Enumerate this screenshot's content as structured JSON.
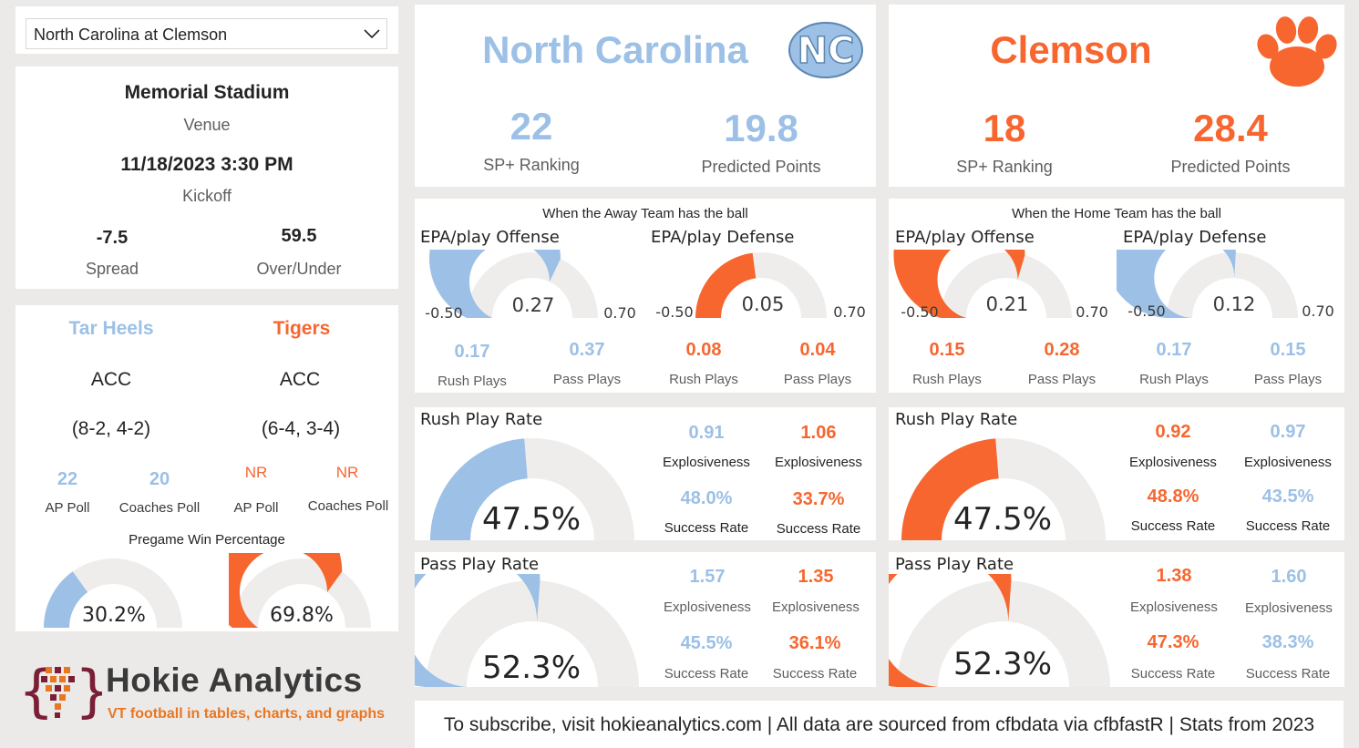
{
  "colors": {
    "away": "#9cc0e6",
    "home": "#f7662f",
    "track": "#efedeb",
    "bg": "#eceae8"
  },
  "icons": {
    "away_logo": "nc-monogram-logo",
    "home_logo": "paw-print-logo",
    "brand_logo": "hokie-analytics-logo",
    "dropdown": "chevron-down-icon"
  },
  "selector": {
    "value": "North Carolina at Clemson"
  },
  "game": {
    "venue": "Memorial Stadium",
    "venue_label": "Venue",
    "kickoff": "11/18/2023 3:30 PM",
    "kickoff_label": "Kickoff",
    "spread": "-7.5",
    "spread_label": "Spread",
    "over_under": "59.5",
    "over_under_label": "Over/Under"
  },
  "teams_panel": {
    "away": {
      "nickname": "Tar Heels",
      "conference": "ACC",
      "record": "(8-2, 4-2)",
      "ap_poll": "22",
      "coaches_poll": "20"
    },
    "home": {
      "nickname": "Tigers",
      "conference": "ACC",
      "record": "(6-4, 3-4)",
      "ap_poll": "NR",
      "coaches_poll": "NR"
    },
    "ap_label": "AP Poll",
    "coaches_label": "Coaches Poll",
    "win_title": "Pregame Win Percentage",
    "away_win": {
      "text": "30.2%",
      "value": 0.302
    },
    "home_win": {
      "text": "69.8%",
      "value": 0.698
    }
  },
  "brand": {
    "name": "Hokie Analytics",
    "tagline": "VT football in tables, charts, and graphs"
  },
  "away_header": {
    "name": "North Carolina",
    "sp_rank": "22",
    "sp_label": "SP+ Ranking",
    "pred": "19.8",
    "pred_label": "Predicted Points"
  },
  "home_header": {
    "name": "Clemson",
    "sp_rank": "18",
    "sp_label": "SP+ Ranking",
    "pred": "28.4",
    "pred_label": "Predicted Points"
  },
  "epa_away_ball": {
    "title": "When the Away Team has the ball",
    "offense": {
      "label": "EPA/play Offense",
      "value_text": "0.27",
      "value": 0.27,
      "min": "-0.50",
      "max": "0.70",
      "rush": "0.17",
      "pass": "0.37"
    },
    "defense": {
      "label": "EPA/play Defense",
      "value_text": "0.05",
      "value": 0.05,
      "min": "-0.50",
      "max": "0.70",
      "rush": "0.08",
      "pass": "0.04"
    }
  },
  "epa_home_ball": {
    "title": "When the Home Team has the ball",
    "offense": {
      "label": "EPA/play Offense",
      "value_text": "0.21",
      "value": 0.21,
      "min": "-0.50",
      "max": "0.70",
      "rush": "0.15",
      "pass": "0.28"
    },
    "defense": {
      "label": "EPA/play Defense",
      "value_text": "0.12",
      "value": 0.12,
      "min": "-0.50",
      "max": "0.70",
      "rush": "0.17",
      "pass": "0.15"
    }
  },
  "labels": {
    "rush_plays": "Rush Plays",
    "pass_plays": "Pass Plays",
    "explosiveness": "Explosiveness",
    "success_rate": "Success Rate"
  },
  "rate_away_ball": {
    "rush": {
      "title": "Rush Play Rate",
      "value_text": "47.5%",
      "value": 0.475,
      "off_expl": "0.91",
      "def_expl": "1.06",
      "off_succ": "48.0%",
      "def_succ": "33.7%"
    },
    "pass": {
      "title": "Pass Play Rate",
      "value_text": "52.3%",
      "value": 0.523,
      "off_expl": "1.57",
      "def_expl": "1.35",
      "off_succ": "45.5%",
      "def_succ": "36.1%"
    }
  },
  "rate_home_ball": {
    "rush": {
      "title": "Rush Play Rate",
      "value_text": "47.5%",
      "value": 0.475,
      "off_expl": "0.92",
      "def_expl": "0.97",
      "off_succ": "48.8%",
      "def_succ": "43.5%"
    },
    "pass": {
      "title": "Pass Play Rate",
      "value_text": "52.3%",
      "value": 0.523,
      "off_expl": "1.38",
      "def_expl": "1.60",
      "off_succ": "47.3%",
      "def_succ": "38.3%"
    }
  },
  "footer": {
    "text": "To subscribe, visit hokieanalytics.com | All data are sourced from cfbdata via cfbfastR | Stats from 2023"
  }
}
